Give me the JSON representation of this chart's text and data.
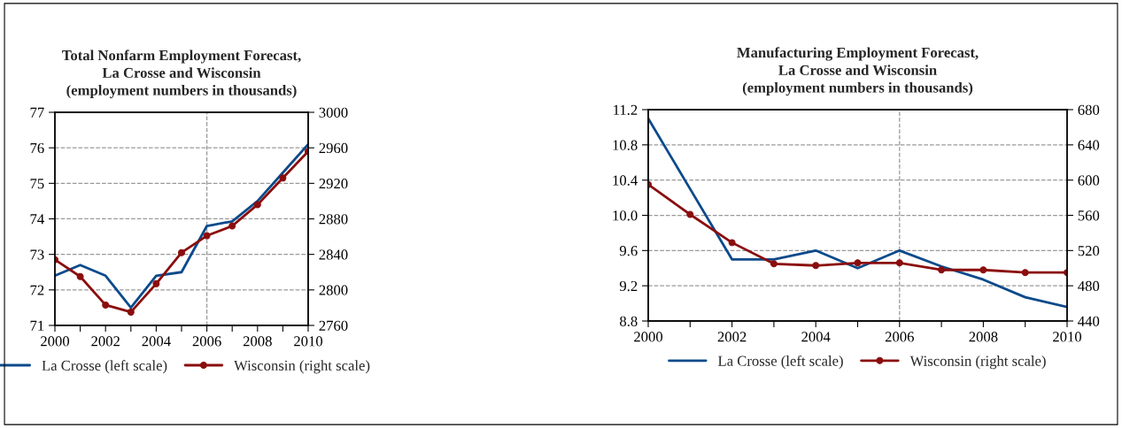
{
  "chart_data": [
    {
      "type": "line",
      "title": "Total Nonfarm Employment Forecast,\nLa Crosse and Wisconsin\n(employment numbers in thousands)",
      "x": [
        2000,
        2001,
        2002,
        2003,
        2004,
        2005,
        2006,
        2007,
        2008,
        2009,
        2010
      ],
      "series": [
        {
          "name": "La Crosse (left scale)",
          "color": "#0b4a8b",
          "marker": "none",
          "values": [
            72.4,
            72.7,
            72.4,
            71.5,
            72.4,
            72.5,
            73.8,
            73.93,
            74.5,
            75.3,
            76.1
          ]
        },
        {
          "name": "Wisconsin (right scale)",
          "color": "#8b0d0d",
          "marker": "circle",
          "axis": "y2",
          "values": [
            2834,
            2815,
            2783,
            2775,
            2807,
            2842,
            2861,
            2872,
            2896,
            2926,
            2956
          ]
        }
      ],
      "xlim": [
        2000,
        2010
      ],
      "xticks": [
        2000,
        {
          "value": 2001,
          "label": null
        },
        2002,
        {
          "value": 2003,
          "label": null
        },
        2004,
        {
          "value": 2005,
          "label": null
        },
        2006,
        {
          "value": 2007,
          "label": null
        },
        2008,
        {
          "value": 2009,
          "label": null
        },
        2010
      ],
      "ylim": [
        71,
        77
      ],
      "yticks": [
        71,
        72,
        73,
        74,
        75,
        76,
        77
      ],
      "y2lim": [
        2760,
        3000
      ],
      "y2ticks": [
        2760,
        2800,
        2840,
        2880,
        2920,
        2960,
        3000
      ],
      "ref_lines": [
        {
          "axis": "x",
          "value": 2006,
          "color": "#999999",
          "line_style": "dashed"
        }
      ],
      "grid": "y",
      "legend": "bottom",
      "line_style": "solid"
    },
    {
      "type": "line",
      "title": "Manufacturing Employment Forecast,\nLa Crosse and Wisconsin\n(employment numbers in thousands)",
      "x": [
        2000,
        2001,
        2002,
        2003,
        2004,
        2005,
        2006,
        2007,
        2008,
        2009,
        2010
      ],
      "series": [
        {
          "name": "La Crosse (left scale)",
          "color": "#0b4a8b",
          "marker": "none",
          "values": [
            11.1,
            10.3,
            9.5,
            9.5,
            9.6,
            9.4,
            9.6,
            9.42,
            9.27,
            9.07,
            8.96
          ]
        },
        {
          "name": "Wisconsin (right scale)",
          "color": "#8b0d0d",
          "marker": "circle",
          "axis": "y2",
          "values": [
            595,
            561,
            529,
            505,
            503,
            506,
            506,
            498,
            498,
            495,
            495
          ]
        }
      ],
      "xlim": [
        2000,
        2010
      ],
      "xticks": [
        2000,
        {
          "value": 2001,
          "label": null
        },
        2002,
        {
          "value": 2003,
          "label": null
        },
        2004,
        {
          "value": 2005,
          "label": null
        },
        2006,
        {
          "value": 2007,
          "label": null
        },
        2008,
        {
          "value": 2009,
          "label": null
        },
        2010
      ],
      "ylim": [
        8.8,
        11.2
      ],
      "yticks": [
        {
          "value": 8.8,
          "label": "8.8"
        },
        {
          "value": 9.2,
          "label": "9.2"
        },
        {
          "value": 9.6,
          "label": "9.6"
        },
        {
          "value": 10.0,
          "label": "10.0"
        },
        {
          "value": 10.4,
          "label": "10.4"
        },
        {
          "value": 10.8,
          "label": "10.8"
        },
        {
          "value": 11.2,
          "label": "11.2"
        }
      ],
      "y2lim": [
        440,
        680
      ],
      "y2ticks": [
        440,
        480,
        520,
        560,
        600,
        640,
        680
      ],
      "ref_lines": [
        {
          "axis": "x",
          "value": 2006,
          "color": "#999999",
          "line_style": "dashed"
        }
      ],
      "grid": "y",
      "legend": "bottom",
      "line_style": "solid"
    }
  ]
}
